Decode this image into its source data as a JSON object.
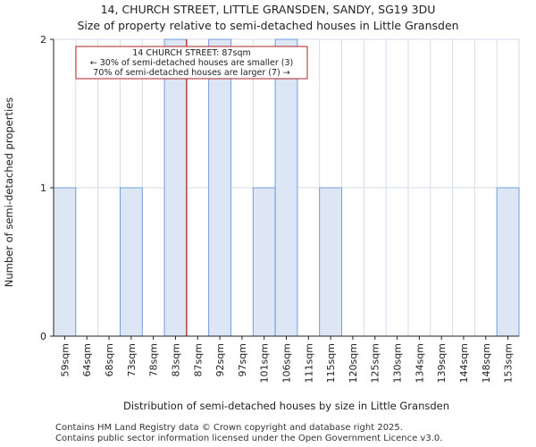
{
  "header": {
    "title_line1": "14, CHURCH STREET, LITTLE GRANSDEN, SANDY, SG19 3DU",
    "title_line2": "Size of property relative to semi-detached houses in Little Gransden"
  },
  "footer": {
    "line1": "Contains HM Land Registry data © Crown copyright and database right 2025.",
    "line2": "Contains public sector information licensed under the Open Government Licence v3.0."
  },
  "colors": {
    "bar_fill": "#dce6f5",
    "bar_stroke": "#5b8fd6",
    "grid": "#d3ddea",
    "marker": "#b22222",
    "annotation_border": "#b22222",
    "axis": "#222222"
  },
  "chart_data": {
    "type": "bar",
    "title": "Size of property relative to semi-detached houses in Little Gransden",
    "xlabel": "Distribution of semi-detached houses by size in Little Gransden",
    "ylabel": "Number of semi-detached properties",
    "categories": [
      "59sqm",
      "64sqm",
      "68sqm",
      "73sqm",
      "78sqm",
      "83sqm",
      "87sqm",
      "92sqm",
      "97sqm",
      "101sqm",
      "106sqm",
      "111sqm",
      "115sqm",
      "120sqm",
      "125sqm",
      "130sqm",
      "134sqm",
      "139sqm",
      "144sqm",
      "148sqm",
      "153sqm"
    ],
    "values": [
      1,
      0,
      0,
      1,
      0,
      2,
      0,
      2,
      0,
      1,
      2,
      0,
      1,
      0,
      0,
      0,
      0,
      0,
      0,
      0,
      1
    ],
    "ylim": [
      0,
      2
    ],
    "yticks": [
      0,
      1,
      2
    ],
    "grid": true,
    "marker": {
      "category_index": 6,
      "label": "14 CHURCH STREET: 87sqm"
    },
    "annotation": {
      "line1": "14 CHURCH STREET: 87sqm",
      "line2": "← 30% of semi-detached houses are smaller (3)",
      "line3": "70% of semi-detached houses are larger (7) →"
    }
  }
}
